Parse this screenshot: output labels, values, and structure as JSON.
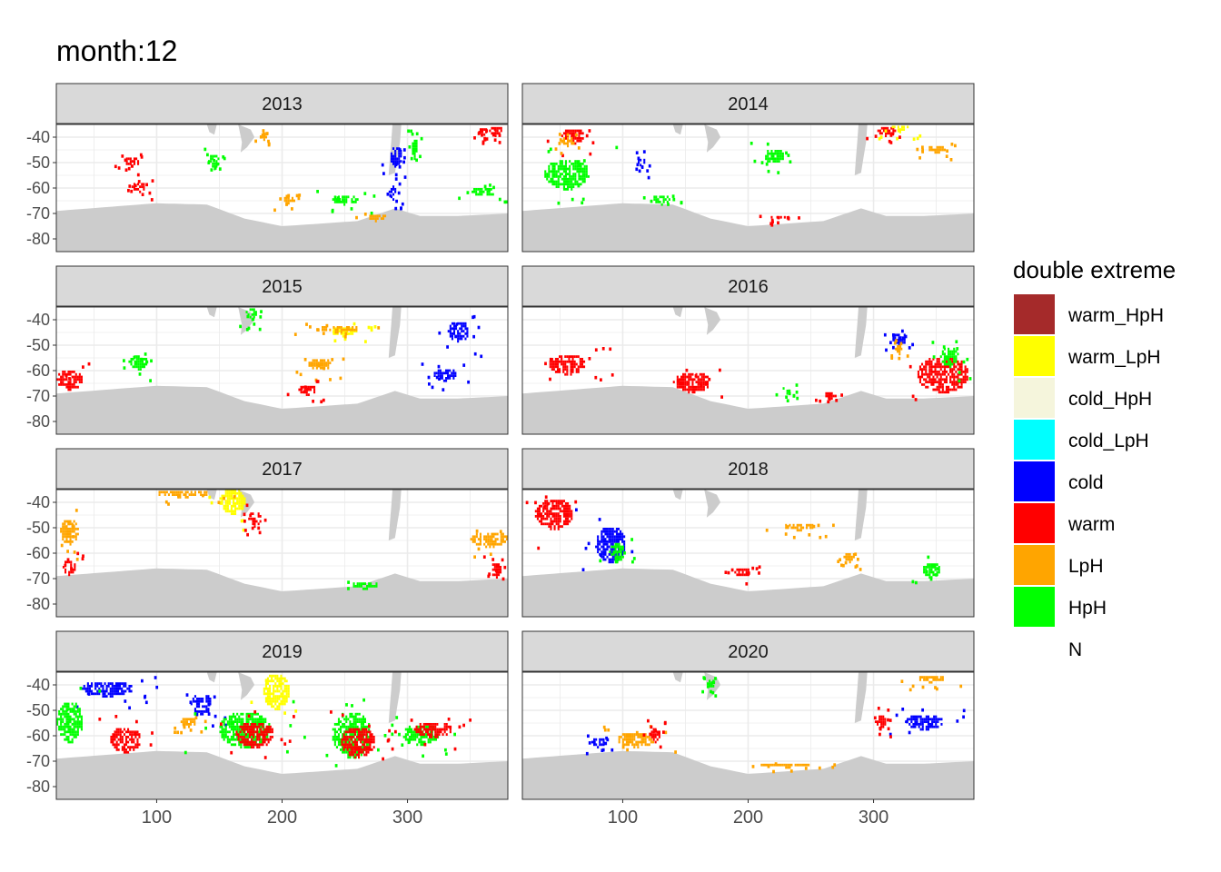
{
  "chart_data": {
    "type": "heatmap",
    "title": "month:12",
    "xlabel": "",
    "ylabel": "",
    "xlim": [
      20,
      380
    ],
    "ylim": [
      -85,
      -35
    ],
    "x_ticks": [
      100,
      200,
      300
    ],
    "x_tick_labels": [
      "100",
      "200",
      "300"
    ],
    "y_ticks": [
      -40,
      -50,
      -60,
      -70,
      -80
    ],
    "y_tick_labels": [
      "-40",
      "-50",
      "-60",
      "-70",
      "-80"
    ],
    "grid": true,
    "legend": {
      "title": "double extreme",
      "placement": "right",
      "entries": [
        {
          "label": "warm_HpH",
          "color": "#A52A2A"
        },
        {
          "label": "warm_LpH",
          "color": "#FFFF00"
        },
        {
          "label": "cold_HpH",
          "color": "#F5F5DC"
        },
        {
          "label": "cold_LpH",
          "color": "#00FFFF"
        },
        {
          "label": "cold",
          "color": "#0000FF"
        },
        {
          "label": "warm",
          "color": "#FF0000"
        },
        {
          "label": "LpH",
          "color": "#FFA500"
        },
        {
          "label": "HpH",
          "color": "#00FF00"
        },
        {
          "label": "N",
          "color": "#FFFFFF"
        }
      ]
    },
    "panels": [
      {
        "label": "2013",
        "regions": [
          {
            "cat": "warm",
            "lon": 80,
            "lat": -50,
            "w": 12,
            "h": 4
          },
          {
            "cat": "warm",
            "lon": 85,
            "lat": -60,
            "w": 10,
            "h": 4
          },
          {
            "cat": "warm",
            "lon": 370,
            "lat": -38,
            "w": 10,
            "h": 4
          },
          {
            "cat": "warm",
            "lon": 360,
            "lat": -38,
            "w": 8,
            "h": 3
          },
          {
            "cat": "cold",
            "lon": 290,
            "lat": -48,
            "w": 10,
            "h": 8
          },
          {
            "cat": "cold",
            "lon": 288,
            "lat": -62,
            "w": 6,
            "h": 6
          },
          {
            "cat": "HpH",
            "lon": 250,
            "lat": -65,
            "w": 20,
            "h": 4
          },
          {
            "cat": "HpH",
            "lon": 360,
            "lat": -62,
            "w": 18,
            "h": 4
          },
          {
            "cat": "HpH",
            "lon": 145,
            "lat": -50,
            "w": 8,
            "h": 6
          },
          {
            "cat": "HpH",
            "lon": 305,
            "lat": -45,
            "w": 6,
            "h": 8
          },
          {
            "cat": "LpH",
            "lon": 275,
            "lat": -72,
            "w": 14,
            "h": 3
          },
          {
            "cat": "LpH",
            "lon": 185,
            "lat": -40,
            "w": 6,
            "h": 3
          },
          {
            "cat": "LpH",
            "lon": 205,
            "lat": -65,
            "w": 10,
            "h": 3
          }
        ]
      },
      {
        "label": "2014",
        "regions": [
          {
            "cat": "HpH",
            "lon": 55,
            "lat": -55,
            "w": 35,
            "h": 12
          },
          {
            "cat": "HpH",
            "lon": 220,
            "lat": -48,
            "w": 16,
            "h": 6
          },
          {
            "cat": "warm",
            "lon": 60,
            "lat": -40,
            "w": 18,
            "h": 6
          },
          {
            "cat": "LpH",
            "lon": 55,
            "lat": -42,
            "w": 8,
            "h": 4
          },
          {
            "cat": "warm",
            "lon": 310,
            "lat": -38,
            "w": 14,
            "h": 4
          },
          {
            "cat": "warm_LpH",
            "lon": 320,
            "lat": -37,
            "w": 14,
            "h": 3
          },
          {
            "cat": "LpH",
            "lon": 350,
            "lat": -45,
            "w": 15,
            "h": 3
          },
          {
            "cat": "cold",
            "lon": 115,
            "lat": -50,
            "w": 6,
            "h": 5
          },
          {
            "cat": "warm",
            "lon": 225,
            "lat": -72,
            "w": 14,
            "h": 2
          },
          {
            "cat": "HpH",
            "lon": 130,
            "lat": -65,
            "w": 14,
            "h": 4
          }
        ]
      },
      {
        "label": "2015",
        "regions": [
          {
            "cat": "warm",
            "lon": 30,
            "lat": -64,
            "w": 20,
            "h": 8
          },
          {
            "cat": "warm_LpH",
            "lon": 250,
            "lat": -45,
            "w": 22,
            "h": 4
          },
          {
            "cat": "LpH",
            "lon": 245,
            "lat": -44,
            "w": 30,
            "h": 3
          },
          {
            "cat": "cold",
            "lon": 330,
            "lat": -62,
            "w": 18,
            "h": 5
          },
          {
            "cat": "cold",
            "lon": 340,
            "lat": -45,
            "w": 16,
            "h": 8
          },
          {
            "cat": "LpH",
            "lon": 230,
            "lat": -58,
            "w": 18,
            "h": 5
          },
          {
            "cat": "HpH",
            "lon": 175,
            "lat": -38,
            "w": 8,
            "h": 5
          },
          {
            "cat": "HpH",
            "lon": 85,
            "lat": -57,
            "w": 15,
            "h": 6
          },
          {
            "cat": "warm",
            "lon": 220,
            "lat": -68,
            "w": 14,
            "h": 4
          }
        ]
      },
      {
        "label": "2016",
        "regions": [
          {
            "cat": "warm",
            "lon": 155,
            "lat": -65,
            "w": 30,
            "h": 8
          },
          {
            "cat": "warm",
            "lon": 355,
            "lat": -62,
            "w": 40,
            "h": 14
          },
          {
            "cat": "warm",
            "lon": 55,
            "lat": -58,
            "w": 30,
            "h": 8
          },
          {
            "cat": "HpH",
            "lon": 360,
            "lat": -55,
            "w": 14,
            "h": 8
          },
          {
            "cat": "cold",
            "lon": 320,
            "lat": -48,
            "w": 10,
            "h": 5
          },
          {
            "cat": "LpH",
            "lon": 320,
            "lat": -52,
            "w": 6,
            "h": 4
          },
          {
            "cat": "HpH",
            "lon": 230,
            "lat": -68,
            "w": 8,
            "h": 3
          },
          {
            "cat": "warm",
            "lon": 265,
            "lat": -70,
            "w": 10,
            "h": 3
          }
        ]
      },
      {
        "label": "2017",
        "regions": [
          {
            "cat": "warm_LpH",
            "lon": 160,
            "lat": -40,
            "w": 20,
            "h": 10
          },
          {
            "cat": "warm",
            "lon": 178,
            "lat": -47,
            "w": 10,
            "h": 6
          },
          {
            "cat": "LpH",
            "lon": 30,
            "lat": -52,
            "w": 14,
            "h": 10
          },
          {
            "cat": "warm",
            "lon": 30,
            "lat": -66,
            "w": 10,
            "h": 6
          },
          {
            "cat": "LpH",
            "lon": 120,
            "lat": -37,
            "w": 40,
            "h": 3
          },
          {
            "cat": "LpH",
            "lon": 365,
            "lat": -55,
            "w": 30,
            "h": 6
          },
          {
            "cat": "HpH",
            "lon": 265,
            "lat": -73,
            "w": 20,
            "h": 3
          },
          {
            "cat": "warm",
            "lon": 370,
            "lat": -67,
            "w": 8,
            "h": 6
          }
        ]
      },
      {
        "label": "2018",
        "regions": [
          {
            "cat": "warm",
            "lon": 45,
            "lat": -45,
            "w": 30,
            "h": 12
          },
          {
            "cat": "cold",
            "lon": 90,
            "lat": -57,
            "w": 24,
            "h": 14
          },
          {
            "cat": "HpH",
            "lon": 95,
            "lat": -60,
            "w": 12,
            "h": 8
          },
          {
            "cat": "HpH",
            "lon": 345,
            "lat": -67,
            "w": 14,
            "h": 6
          },
          {
            "cat": "warm",
            "lon": 195,
            "lat": -68,
            "w": 12,
            "h": 4
          },
          {
            "cat": "LpH",
            "lon": 240,
            "lat": -50,
            "w": 24,
            "h": 3
          },
          {
            "cat": "LpH",
            "lon": 280,
            "lat": -62,
            "w": 8,
            "h": 4
          }
        ]
      },
      {
        "label": "2019",
        "regions": [
          {
            "cat": "warm_LpH",
            "lon": 195,
            "lat": -43,
            "w": 20,
            "h": 14
          },
          {
            "cat": "cold",
            "lon": 60,
            "lat": -42,
            "w": 40,
            "h": 6
          },
          {
            "cat": "cold",
            "lon": 135,
            "lat": -48,
            "w": 16,
            "h": 8
          },
          {
            "cat": "HpH",
            "lon": 170,
            "lat": -58,
            "w": 40,
            "h": 14
          },
          {
            "cat": "warm",
            "lon": 178,
            "lat": -60,
            "w": 30,
            "h": 10
          },
          {
            "cat": "HpH",
            "lon": 255,
            "lat": -60,
            "w": 30,
            "h": 18
          },
          {
            "cat": "warm",
            "lon": 260,
            "lat": -63,
            "w": 26,
            "h": 12
          },
          {
            "cat": "warm",
            "lon": 75,
            "lat": -62,
            "w": 24,
            "h": 10
          },
          {
            "cat": "HpH",
            "lon": 310,
            "lat": -60,
            "w": 30,
            "h": 8
          },
          {
            "cat": "warm",
            "lon": 320,
            "lat": -58,
            "w": 30,
            "h": 6
          },
          {
            "cat": "LpH",
            "lon": 125,
            "lat": -55,
            "w": 12,
            "h": 4
          },
          {
            "cat": "HpH",
            "lon": 30,
            "lat": -55,
            "w": 20,
            "h": 16
          }
        ]
      },
      {
        "label": "2020",
        "regions": [
          {
            "cat": "LpH",
            "lon": 110,
            "lat": -62,
            "w": 30,
            "h": 6
          },
          {
            "cat": "cold",
            "lon": 80,
            "lat": -63,
            "w": 10,
            "h": 4
          },
          {
            "cat": "cold",
            "lon": 340,
            "lat": -55,
            "w": 30,
            "h": 6
          },
          {
            "cat": "warm",
            "lon": 305,
            "lat": -55,
            "w": 8,
            "h": 6
          },
          {
            "cat": "warm",
            "lon": 125,
            "lat": -60,
            "w": 8,
            "h": 6
          },
          {
            "cat": "LpH",
            "lon": 345,
            "lat": -38,
            "w": 20,
            "h": 3
          },
          {
            "cat": "HpH",
            "lon": 170,
            "lat": -40,
            "w": 6,
            "h": 4
          },
          {
            "cat": "LpH",
            "lon": 230,
            "lat": -72,
            "w": 40,
            "h": 2
          }
        ]
      }
    ]
  }
}
